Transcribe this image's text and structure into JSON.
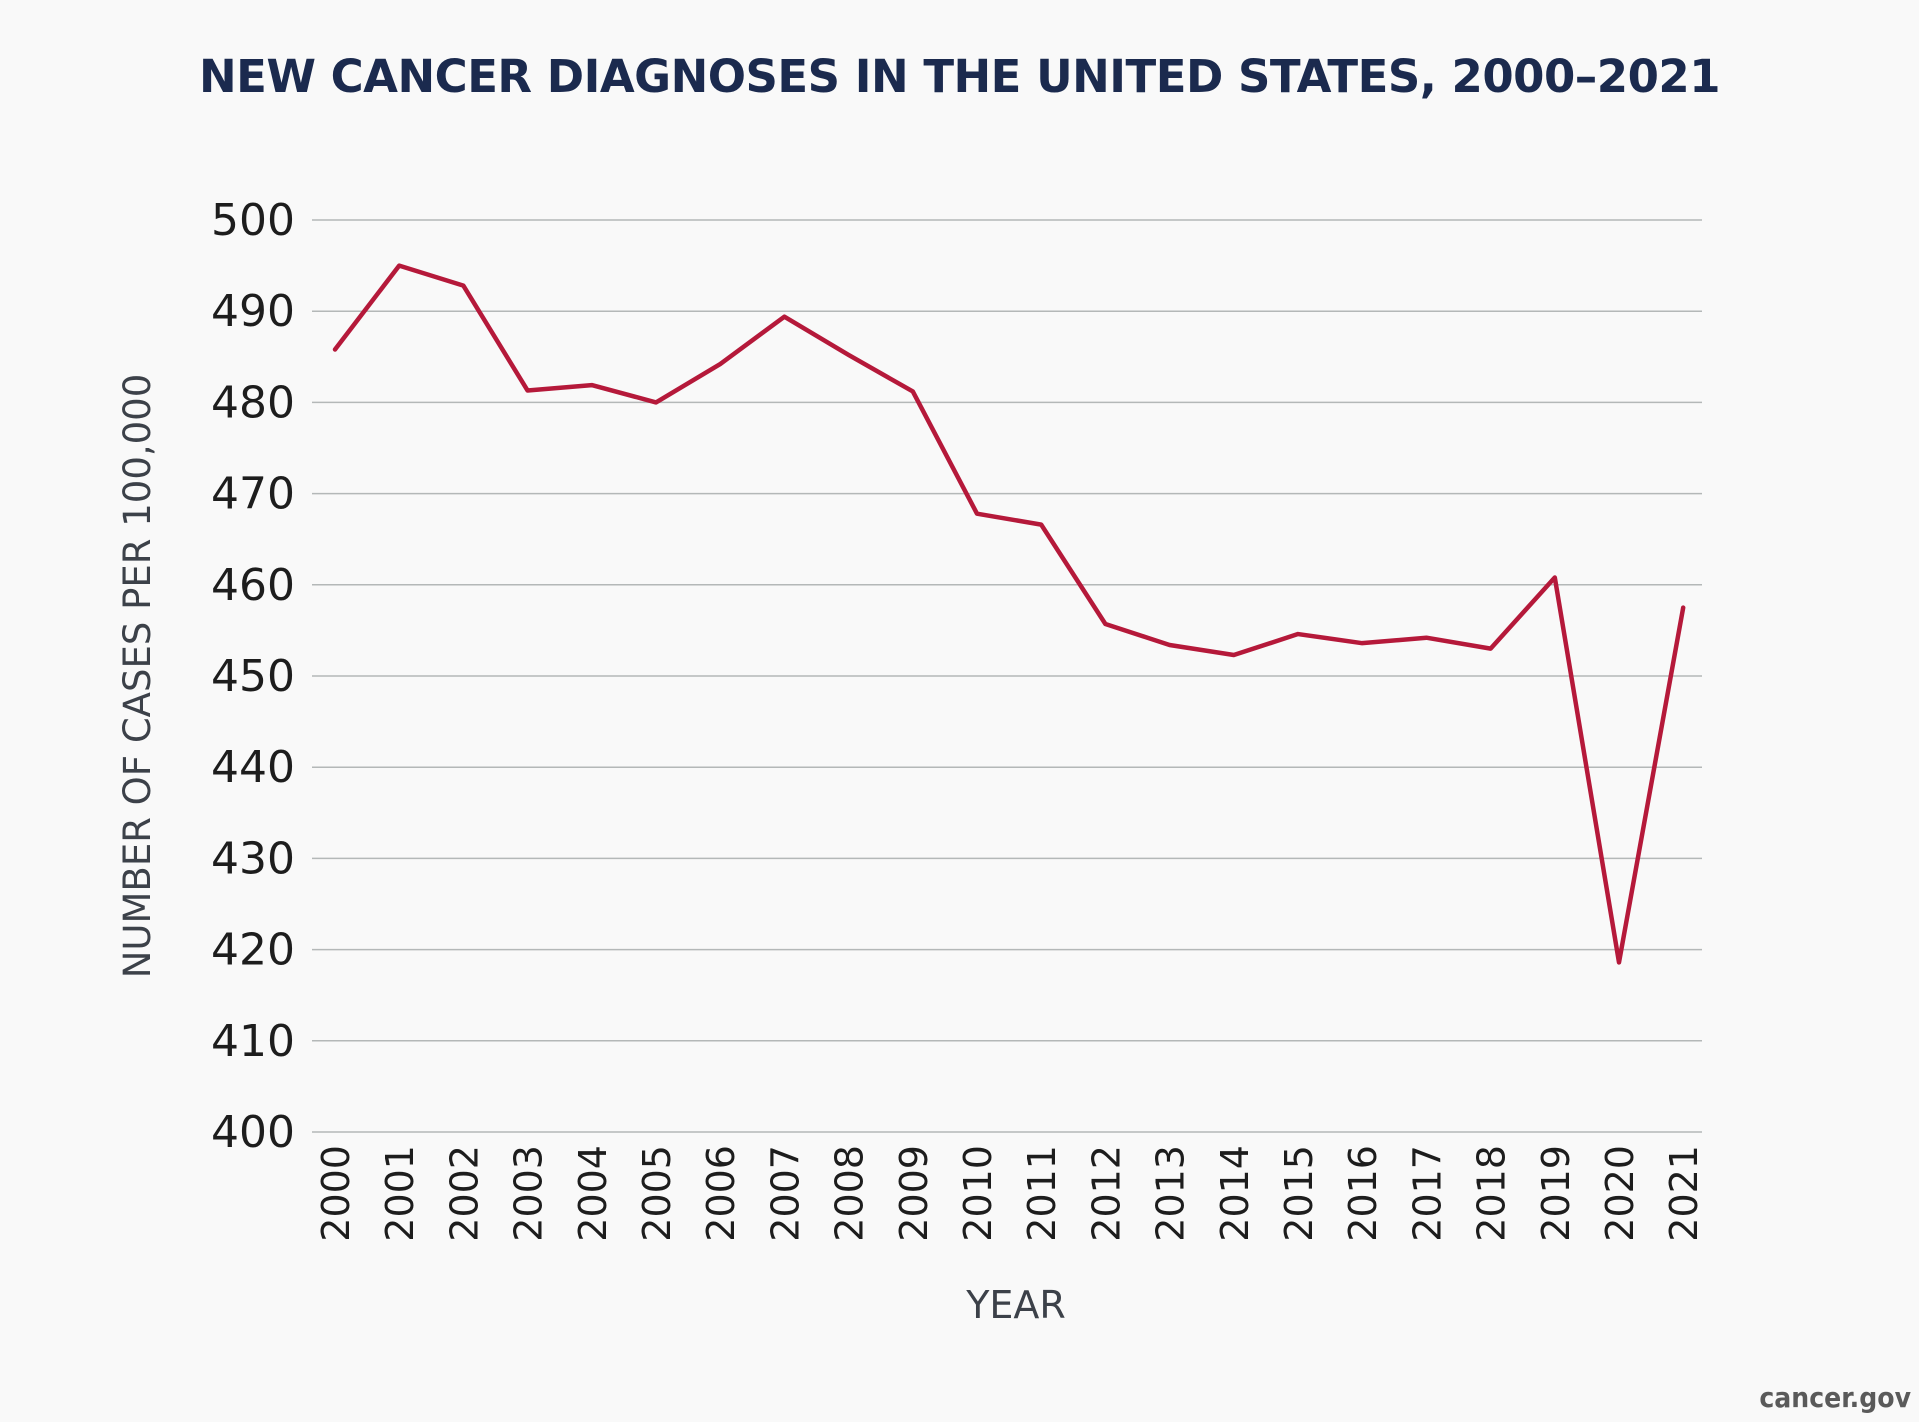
{
  "chart_data": {
    "type": "line",
    "title": "NEW CANCER DIAGNOSES IN THE UNITED STATES, 2000–2021",
    "xlabel": "YEAR",
    "ylabel": "NUMBER OF CASES PER 100,000",
    "ylim": [
      400,
      500
    ],
    "yticks": [
      400,
      410,
      420,
      430,
      440,
      450,
      460,
      470,
      480,
      490,
      500
    ],
    "grid": true,
    "categories": [
      "2000",
      "2001",
      "2002",
      "2003",
      "2004",
      "2005",
      "2006",
      "2007",
      "2008",
      "2009",
      "2010",
      "2011",
      "2012",
      "2013",
      "2014",
      "2015",
      "2016",
      "2017",
      "2018",
      "2019",
      "2020",
      "2021"
    ],
    "values": [
      485.8,
      495.0,
      492.8,
      481.3,
      481.9,
      480.0,
      484.2,
      489.4,
      485.2,
      481.2,
      467.8,
      466.6,
      455.7,
      453.4,
      452.3,
      454.6,
      453.6,
      454.2,
      453.0,
      460.8,
      418.6,
      457.5
    ],
    "line_color": "#b5193a"
  },
  "source": "cancer.gov"
}
